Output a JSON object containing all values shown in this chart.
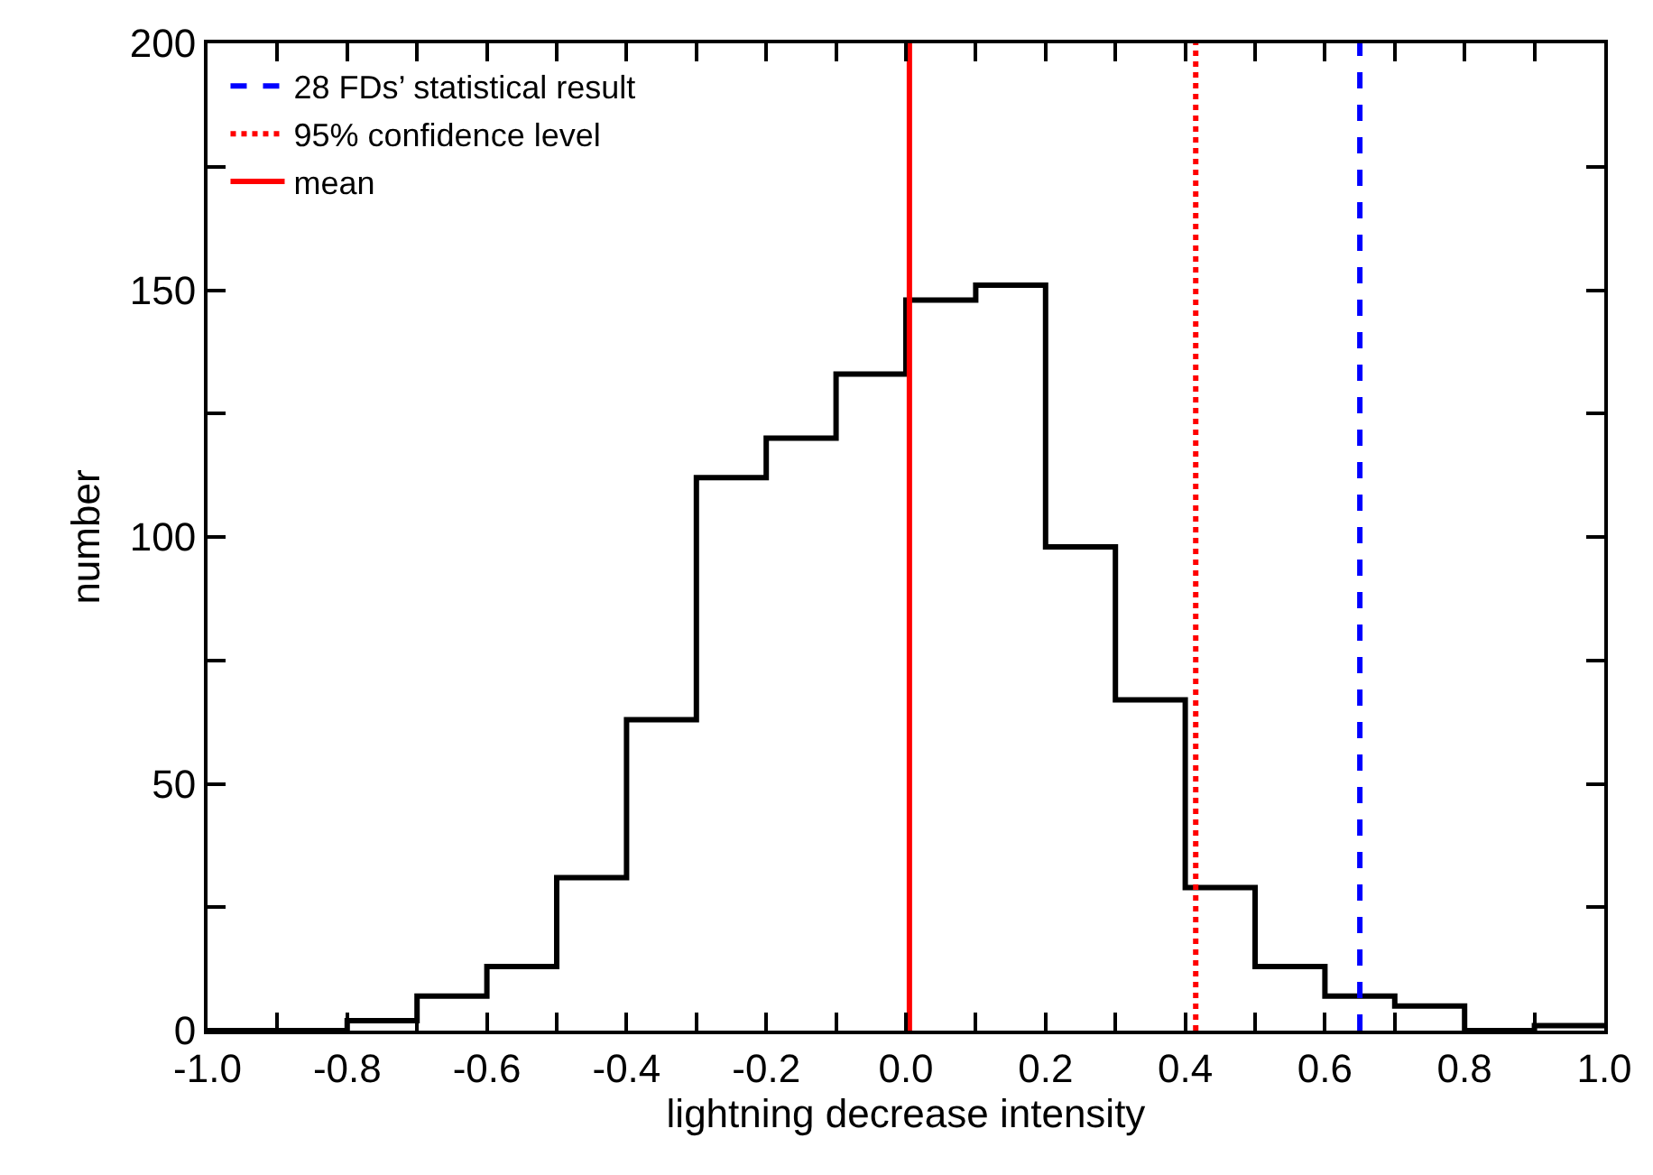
{
  "chart_data": {
    "type": "histogram",
    "xlabel": "lightning decrease intensity",
    "ylabel": "number",
    "bins": [
      -1.0,
      -0.9,
      -0.8,
      -0.7,
      -0.6,
      -0.5,
      -0.4,
      -0.3,
      -0.2,
      -0.1,
      0.0,
      0.1,
      0.2,
      0.3,
      0.4,
      0.5,
      0.6,
      0.7,
      0.8,
      0.9,
      1.0
    ],
    "values": [
      0,
      0,
      2,
      7,
      13,
      31,
      63,
      112,
      120,
      133,
      148,
      151,
      98,
      67,
      29,
      13,
      7,
      5,
      0,
      1
    ],
    "color": "#000000",
    "xlim": [
      -1.0,
      1.0
    ],
    "xticks": [
      {
        "value": -1.0,
        "label": "-1.0"
      },
      {
        "value": -0.9,
        "label": null
      },
      {
        "value": -0.8,
        "label": "-0.8"
      },
      {
        "value": -0.7,
        "label": null
      },
      {
        "value": -0.6,
        "label": "-0.6"
      },
      {
        "value": -0.5,
        "label": null
      },
      {
        "value": -0.4,
        "label": "-0.4"
      },
      {
        "value": -0.3,
        "label": null
      },
      {
        "value": -0.2,
        "label": "-0.2"
      },
      {
        "value": -0.1,
        "label": null
      },
      {
        "value": 0.0,
        "label": "0.0"
      },
      {
        "value": 0.1,
        "label": null
      },
      {
        "value": 0.2,
        "label": "0.2"
      },
      {
        "value": 0.3,
        "label": null
      },
      {
        "value": 0.4,
        "label": "0.4"
      },
      {
        "value": 0.5,
        "label": null
      },
      {
        "value": 0.6,
        "label": "0.6"
      },
      {
        "value": 0.7,
        "label": null
      },
      {
        "value": 0.8,
        "label": "0.8"
      },
      {
        "value": 0.9,
        "label": null
      },
      {
        "value": 1.0,
        "label": "1.0"
      }
    ],
    "ylim": [
      0,
      200
    ],
    "yticks": [
      0,
      {
        "value": 25,
        "label": null
      },
      50,
      {
        "value": 75,
        "label": null
      },
      100,
      {
        "value": 125,
        "label": null
      },
      150,
      {
        "value": 175,
        "label": null
      },
      200
    ],
    "series": [
      {
        "type": "line",
        "name": "28 FDs’ statistical result",
        "color": "#0000ff",
        "line_style": "dashed",
        "x": [
          0.65,
          0.65
        ],
        "values": [
          0,
          200
        ]
      },
      {
        "type": "line",
        "name": "95% confidence level",
        "color": "#ff0000",
        "line_style": "dotted",
        "x": [
          0.415,
          0.415
        ],
        "values": [
          0,
          200
        ]
      },
      {
        "type": "line",
        "name": "mean",
        "color": "#ff0000",
        "line_style": "solid",
        "x": [
          0.005,
          0.005
        ],
        "values": [
          0,
          200
        ]
      }
    ],
    "legend": "top left"
  }
}
